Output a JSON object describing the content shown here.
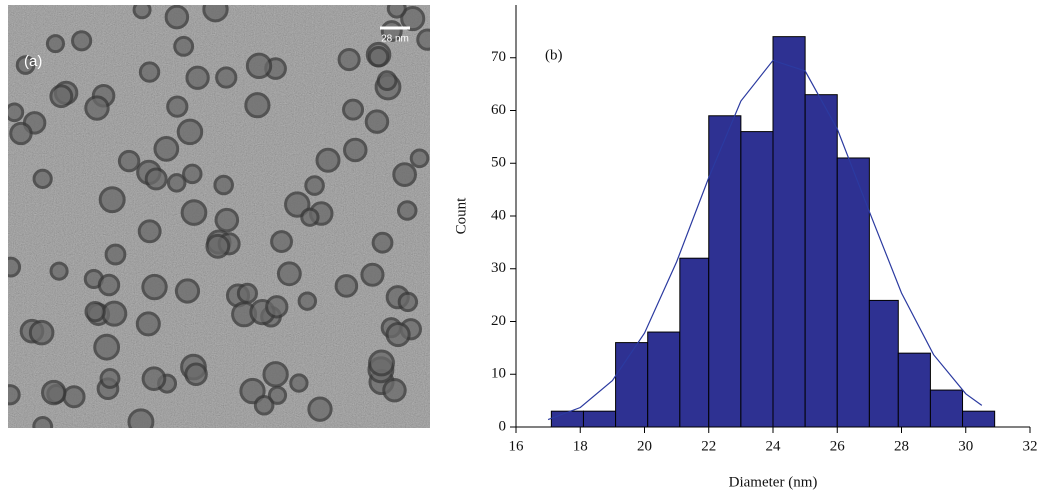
{
  "panel_a": {
    "label": "(a)",
    "scale_bar": "28 nm"
  },
  "chart_data": {
    "type": "histogram",
    "panel_label": "(b)",
    "x_label": "Diameter (nm)",
    "y_label": "Count",
    "bins": [
      17.1,
      18.1,
      19.1,
      20.1,
      21.1,
      22.0,
      23.0,
      24.0,
      25.0,
      26.0,
      27.0,
      27.9,
      28.9,
      29.9,
      30.9
    ],
    "values": [
      3,
      3,
      16,
      18,
      32,
      59,
      56,
      74,
      63,
      51,
      24,
      14,
      7,
      3
    ],
    "color": "#2e3192",
    "fit": {
      "color": "#2b3aa0",
      "x": [
        17,
        18,
        19,
        20,
        21,
        22,
        23,
        24,
        25,
        26,
        27,
        28,
        29,
        30,
        30.5
      ],
      "values": [
        1.4,
        3.7,
        8.8,
        17.8,
        31.3,
        47.3,
        61.8,
        69.5,
        67.5,
        56.5,
        40.8,
        25.4,
        13.7,
        6.3,
        4.1
      ]
    },
    "xlim": [
      16,
      32
    ],
    "xticks": [
      16,
      18,
      20,
      22,
      24,
      26,
      28,
      30,
      32
    ],
    "ylim": [
      0,
      80
    ],
    "yticks": [
      0,
      10,
      20,
      30,
      40,
      50,
      60,
      70
    ]
  }
}
